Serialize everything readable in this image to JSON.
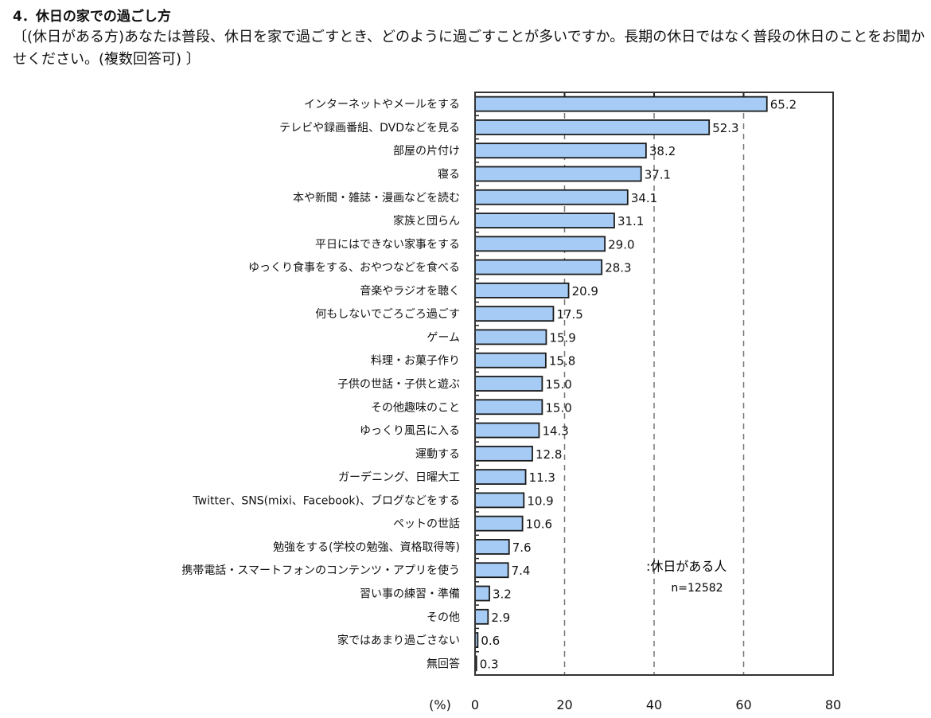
{
  "title": "4．休日の家での過ごし方",
  "question": "〔(休日がある方)あなたは普段、休日を家で過ごすとき、どのように過ごすことが多いですか。長期の休日ではなく普段の休日のことをお聞かせください。(複数回答可) 〕",
  "chart_data": {
    "type": "bar",
    "orientation": "horizontal",
    "categories": [
      "インターネットやメールをする",
      "テレビや録画番組、DVDなどを見る",
      "部屋の片付け",
      "寝る",
      "本や新聞・雑誌・漫画などを読む",
      "家族と団らん",
      "平日にはできない家事をする",
      "ゆっくり食事をする、おやつなどを食べる",
      "音楽やラジオを聴く",
      "何もしないでごろごろ過ごす",
      "ゲーム",
      "料理・お菓子作り",
      "子供の世話・子供と遊ぶ",
      "その他趣味のこと",
      "ゆっくり風呂に入る",
      "運動する",
      "ガーデニング、日曜大工",
      "Twitter、SNS(mixi、Facebook)、ブログなどをする",
      "ペットの世話",
      "勉強をする(学校の勉強、資格取得等)",
      "携帯電話・スマートフォンのコンテンツ・アプリを使う",
      "習い事の練習・準備",
      "その他",
      "家ではあまり過ごさない",
      "無回答"
    ],
    "series": [
      {
        "name": ":休日がある人",
        "values": [
          65.2,
          52.3,
          38.2,
          37.1,
          34.1,
          31.1,
          29.0,
          28.3,
          20.9,
          17.5,
          15.9,
          15.8,
          15.0,
          15.0,
          14.3,
          12.8,
          11.3,
          10.9,
          10.6,
          7.6,
          7.4,
          3.2,
          2.9,
          0.6,
          0.3
        ],
        "labels": [
          "65.2",
          "52.3",
          "38.2",
          "37.1",
          "34.1",
          "31.1",
          "29.0",
          "28.3",
          "20.9",
          "17.5",
          "15.9",
          "15.8",
          "15.0",
          "15.0",
          "14.3",
          "12.8",
          "11.3",
          "10.9",
          "10.6",
          "7.6",
          "7.4",
          "3.2",
          "2.9",
          "0.6",
          "0.3"
        ]
      }
    ],
    "sample_size": "n=12582",
    "xlabel": "(%)",
    "xlim": [
      0,
      80
    ],
    "xticks": [
      "0",
      "20",
      "40",
      "60",
      "80"
    ],
    "grid": "dashed vertical at 20, 40, 60",
    "legend": "inside lower-right",
    "colors": {
      "bar": "#a6ccf6",
      "bar_border": "#1a1a1a",
      "grid": "#777777"
    }
  }
}
